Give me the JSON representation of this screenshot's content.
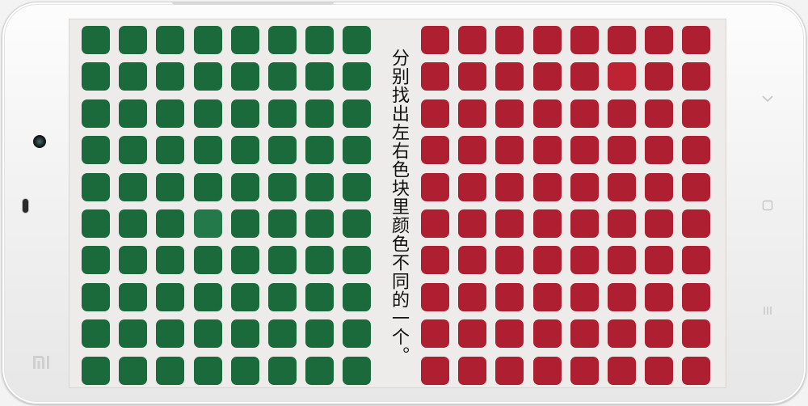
{
  "game": {
    "instruction": "分别找出左右色块里颜色不同的一个。",
    "left_grid": {
      "rows": 10,
      "cols": 8,
      "base_color": "#1b6a3c",
      "odd_color": "#23794a",
      "odd_cell": {
        "row": 6,
        "col": 4
      }
    },
    "right_grid": {
      "rows": 10,
      "cols": 8,
      "base_color": "#ad1f31",
      "odd_color": "#be2334",
      "odd_cell": {
        "row": 2,
        "col": 6
      }
    }
  },
  "device": {
    "nav_buttons": [
      "chevron-down-icon",
      "home-square-icon",
      "menu-lines-icon"
    ],
    "brand_logo": "mi-logo"
  }
}
